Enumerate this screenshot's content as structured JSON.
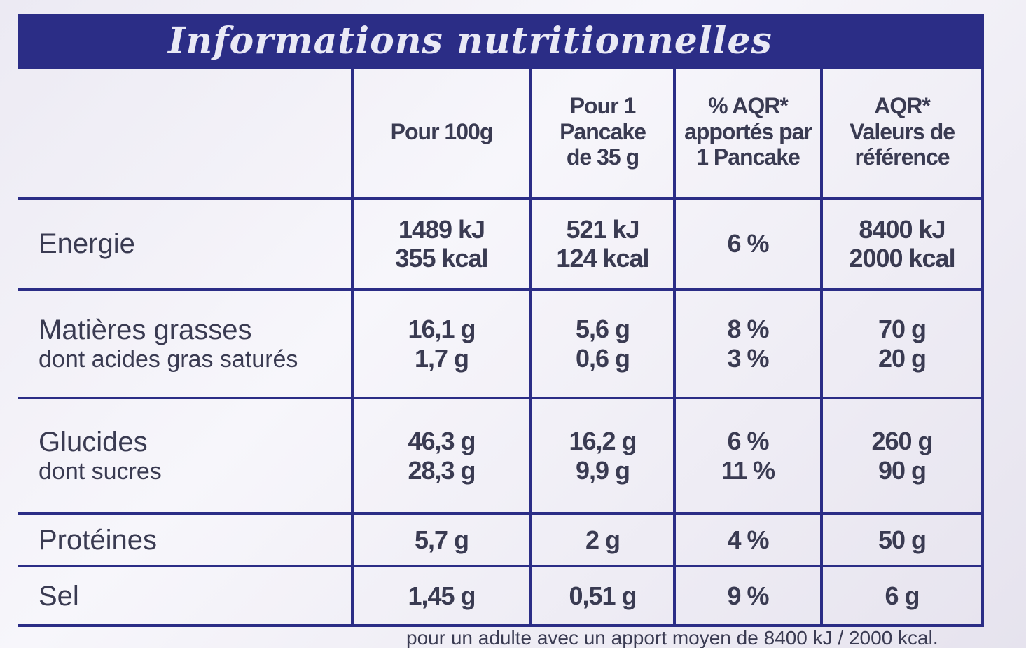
{
  "title": "Informations nutritionnelles",
  "table": {
    "header": [
      [
        "Pour 100g"
      ],
      [
        "Pour 1",
        "Pancake",
        "de 35 g"
      ],
      [
        "% AQR*",
        "apportés par",
        "1 Pancake"
      ],
      [
        "AQR*",
        "Valeurs de",
        "référence"
      ]
    ],
    "rows": [
      [
        [
          "Energie"
        ],
        [
          "1489 kJ",
          "355 kcal"
        ],
        [
          "521 kJ",
          "124 kcal"
        ],
        [
          "6 %"
        ],
        [
          "8400 kJ",
          "2000 kcal"
        ]
      ],
      [
        [
          "Matières grasses",
          "dont acides gras saturés"
        ],
        [
          "16,1 g",
          "1,7 g"
        ],
        [
          "5,6 g",
          "0,6 g"
        ],
        [
          "8 %",
          "3 %"
        ],
        [
          "70 g",
          "20 g"
        ]
      ],
      [
        [
          "Glucides",
          "dont sucres"
        ],
        [
          "46,3 g",
          "28,3 g"
        ],
        [
          "16,2 g",
          "9,9 g"
        ],
        [
          "6 %",
          "11 %"
        ],
        [
          "260 g",
          "90 g"
        ]
      ],
      [
        [
          "Protéines"
        ],
        [
          "5,7 g"
        ],
        [
          "2 g"
        ],
        [
          "4 %"
        ],
        [
          "50 g"
        ]
      ],
      [
        [
          "Sel"
        ],
        [
          "1,45 g"
        ],
        [
          "0,51 g"
        ],
        [
          "9 %"
        ],
        [
          "6 g"
        ]
      ]
    ]
  },
  "footer": "pour un adulte avec un apport moyen de 8400 kJ / 2000 kcal."
}
